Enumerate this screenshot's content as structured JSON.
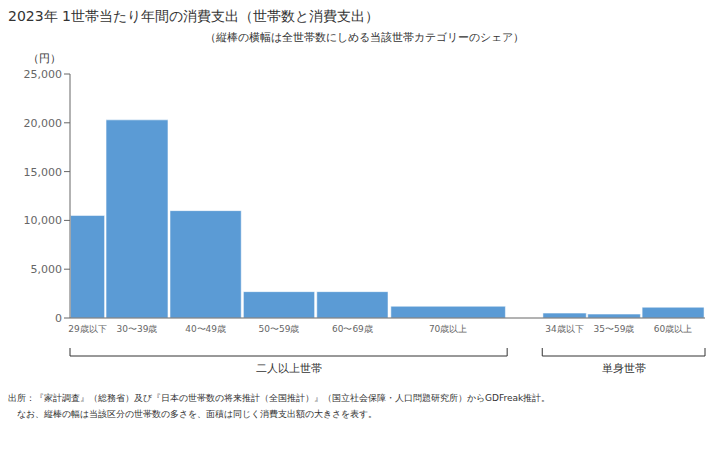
{
  "chart_data": {
    "type": "bar",
    "title": "2023年  1世帯当たり年間の消費支出（世帯数と消費支出）",
    "subtitle": "（縦棒の横幅は全世帯数にしめる当該世帯カテゴリーのシェア）",
    "ylabel": "（円）",
    "categories": [
      "29歳以下",
      "30〜39歳",
      "40〜49歳",
      "50〜59歳",
      "60〜69歳",
      "70歳以上",
      "34歳以下",
      "35〜59歳",
      "60歳以上"
    ],
    "values": [
      10500,
      20300,
      11000,
      2700,
      2700,
      1200,
      500,
      400,
      1100
    ],
    "widths": [
      0.055,
      0.1,
      0.115,
      0.115,
      0.115,
      0.185,
      0.07,
      0.085,
      0.1
    ],
    "groups": [
      {
        "name": "二人以上世帯",
        "size": 6
      },
      {
        "name": "単身世帯",
        "size": 3
      }
    ],
    "color": "#5b9bd5",
    "ylim": [
      0,
      25000
    ],
    "yticks": [
      0,
      {
        "value": 5000,
        "label": "5,000"
      },
      {
        "value": 10000,
        "label": "10,000"
      },
      {
        "value": 15000,
        "label": "15,000"
      },
      {
        "value": 20000,
        "label": "20,000"
      },
      {
        "value": 25000,
        "label": "25,000"
      }
    ],
    "grid": false,
    "footnotes": [
      "出所：『家計調査』（総務省）及び『日本の世帯数の将来推計（全国推計）』（国立社会保障・人口問題研究所）からGDFreak推計。",
      "　なお、縦棒の幅は当該区分の世帯数の多さを、面積は同じく消費支出額の大きさを表す。"
    ]
  }
}
